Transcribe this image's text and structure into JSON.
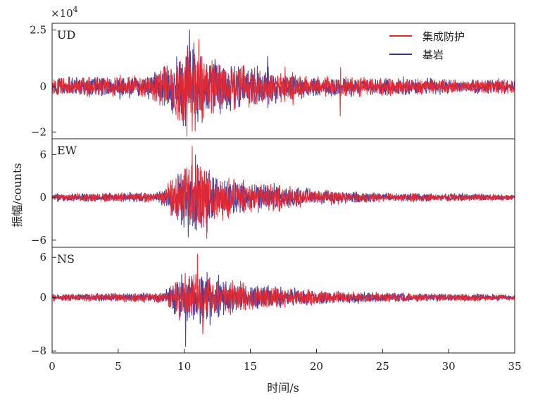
{
  "chart_data": {
    "type": "line",
    "multiplier": "×10",
    "multiplier_exp": "4",
    "xlabel": "时间/s",
    "ylabel": "振幅/counts",
    "xlim": [
      0,
      35
    ],
    "xticks": [
      "0",
      "5",
      "10",
      "15",
      "20",
      "25",
      "30",
      "35"
    ],
    "grid": false,
    "legend_position": "top-right",
    "series_colors": {
      "集成防护": "#e8262c",
      "基岩": "#3b3a9c"
    },
    "legend": [
      {
        "name": "集成防护",
        "color": "#e8262c"
      },
      {
        "name": "基岩",
        "color": "#3b3a9c"
      }
    ],
    "panels": [
      {
        "label": "UD",
        "ylim": [
          -2.3,
          2.8
        ],
        "yticks": [
          {
            "value": 2.5,
            "label": "2.5"
          },
          {
            "value": 0,
            "label": "0"
          },
          {
            "value": -2,
            "label": "−2"
          }
        ],
        "envelope": [
          {
            "t": 0,
            "a": 0.45
          },
          {
            "t": 7,
            "a": 0.6
          },
          {
            "t": 8.5,
            "a": 1.0
          },
          {
            "t": 9.5,
            "a": 1.6
          },
          {
            "t": 10.3,
            "a": 2.6
          },
          {
            "t": 11.5,
            "a": 1.7
          },
          {
            "t": 13,
            "a": 1.2
          },
          {
            "t": 16,
            "a": 0.9
          },
          {
            "t": 20,
            "a": 0.5
          },
          {
            "t": 28,
            "a": 0.4
          },
          {
            "t": 35,
            "a": 0.35
          }
        ],
        "features": [
          {
            "t": 10.2,
            "v": -2.2
          },
          {
            "t": 10.4,
            "v": 2.8
          },
          {
            "t": 11.1,
            "v": 2.1
          },
          {
            "t": 16.3,
            "v": 1.5
          },
          {
            "t": 21.8,
            "v": -1.3
          }
        ]
      },
      {
        "label": "EW",
        "ylim": [
          -7.0,
          8.2
        ],
        "yticks": [
          {
            "value": 6,
            "label": "6"
          },
          {
            "value": 0,
            "label": "0"
          },
          {
            "value": -6,
            "label": "−6"
          }
        ],
        "envelope": [
          {
            "t": 0,
            "a": 0.6
          },
          {
            "t": 8,
            "a": 0.8
          },
          {
            "t": 9,
            "a": 2.5
          },
          {
            "t": 10,
            "a": 5.0
          },
          {
            "t": 11,
            "a": 5.5
          },
          {
            "t": 12,
            "a": 4.0
          },
          {
            "t": 14,
            "a": 2.5
          },
          {
            "t": 17,
            "a": 2.2
          },
          {
            "t": 20,
            "a": 1.2
          },
          {
            "t": 25,
            "a": 0.7
          },
          {
            "t": 35,
            "a": 0.5
          }
        ],
        "features": [
          {
            "t": 10.6,
            "v": 7.2
          },
          {
            "t": 10.3,
            "v": -6.2
          },
          {
            "t": 11.7,
            "v": -5.8
          }
        ]
      },
      {
        "label": "NS",
        "ylim": [
          -8.3,
          7.5
        ],
        "yticks": [
          {
            "value": 6,
            "label": "6"
          },
          {
            "value": 0,
            "label": "0"
          },
          {
            "value": -8,
            "label": "−8"
          }
        ],
        "envelope": [
          {
            "t": 0,
            "a": 0.6
          },
          {
            "t": 8.5,
            "a": 0.9
          },
          {
            "t": 9.2,
            "a": 3.0
          },
          {
            "t": 10.2,
            "a": 4.5
          },
          {
            "t": 11.5,
            "a": 4.0
          },
          {
            "t": 13,
            "a": 3.0
          },
          {
            "t": 16,
            "a": 2.0
          },
          {
            "t": 20,
            "a": 1.2
          },
          {
            "t": 26,
            "a": 0.8
          },
          {
            "t": 35,
            "a": 0.5
          }
        ],
        "features": [
          {
            "t": 11.0,
            "v": 6.5
          },
          {
            "t": 10.1,
            "v": -8.2
          },
          {
            "t": 11.4,
            "v": -5.5
          }
        ]
      }
    ]
  }
}
